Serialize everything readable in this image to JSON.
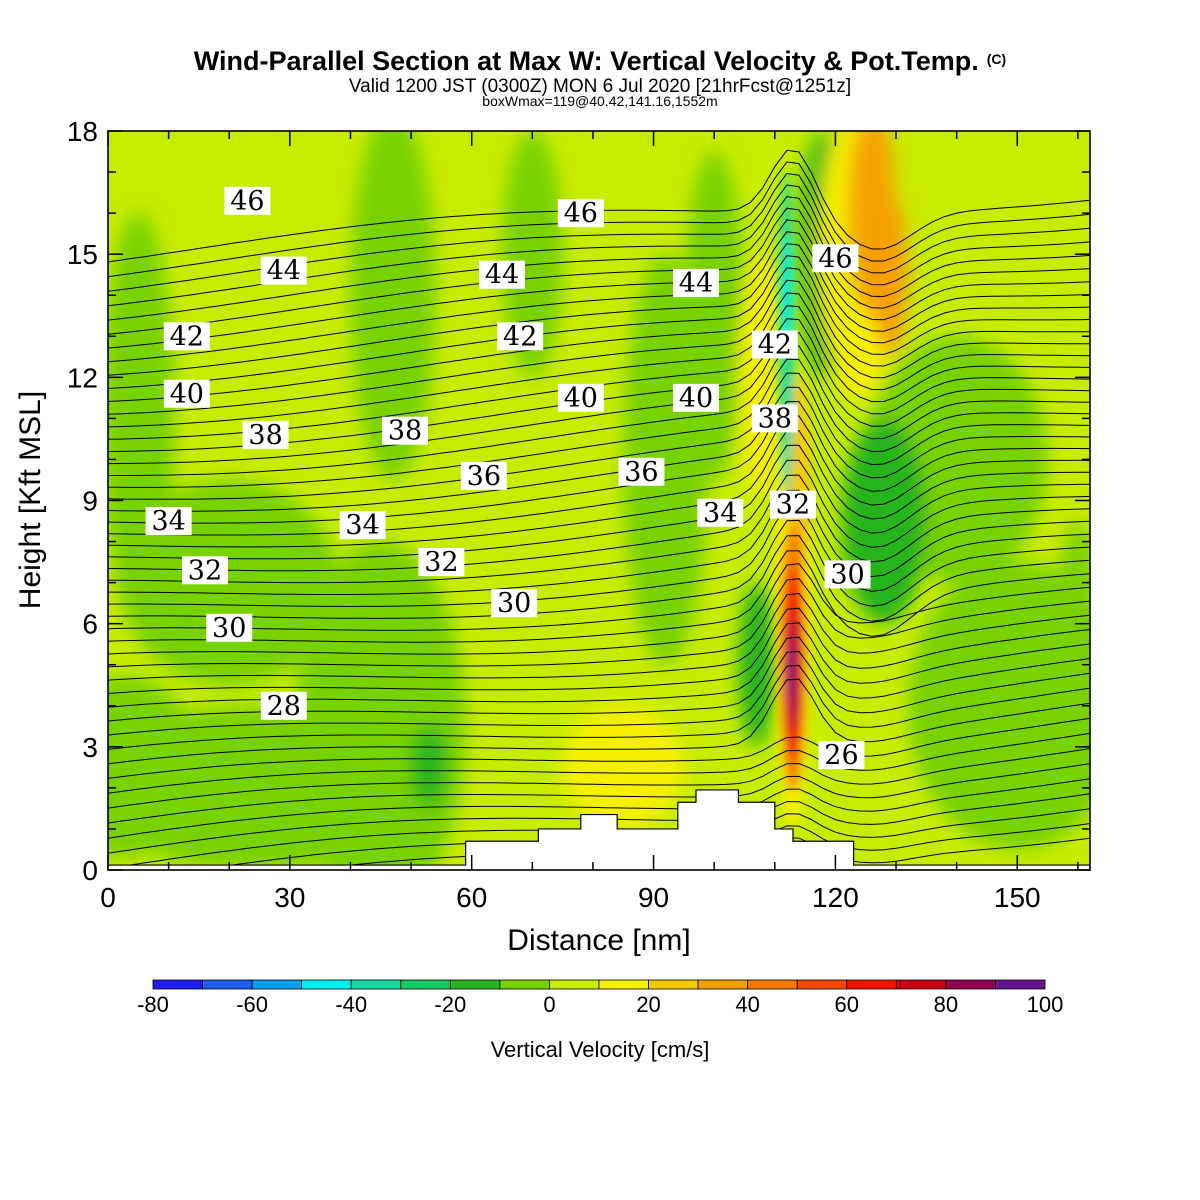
{
  "chart_data": {
    "type": "heatmap",
    "title": "Wind-Parallel Section at Max W: Vertical Velocity & Pot.Temp.",
    "title_mark": "(C)",
    "subtitle": "Valid 1200 JST (0300Z) MON 6 Jul 2020 [21hrFcst@1251z]",
    "subtitle2": "boxWmax=119@40.42,141.16,1552m",
    "xlabel": "Distance [nm]",
    "ylabel": "Height [Kft MSL]",
    "xlim": [
      0,
      162
    ],
    "ylim": [
      0,
      18
    ],
    "xticks": [
      0,
      30,
      60,
      90,
      120,
      150
    ],
    "yticks": [
      0,
      3,
      6,
      9,
      12,
      15,
      18
    ],
    "colorbar": {
      "label": "Vertical Velocity [cm/s]",
      "range": [
        -80,
        100
      ],
      "tick_labels": [
        "-80",
        "-60",
        "-40",
        "-20",
        "0",
        "20",
        "40",
        "60",
        "80",
        "100"
      ],
      "bins": [
        {
          "from": -80,
          "to": -70,
          "color": "#1e1ef0"
        },
        {
          "from": -70,
          "to": -60,
          "color": "#1e5ef0"
        },
        {
          "from": -60,
          "to": -50,
          "color": "#0aa0f0"
        },
        {
          "from": -50,
          "to": -40,
          "color": "#00f0f0"
        },
        {
          "from": -40,
          "to": -30,
          "color": "#14d8a0"
        },
        {
          "from": -30,
          "to": -20,
          "color": "#14c864"
        },
        {
          "from": -20,
          "to": -10,
          "color": "#28b41e"
        },
        {
          "from": -10,
          "to": 0,
          "color": "#78d200"
        },
        {
          "from": 0,
          "to": 10,
          "color": "#c8ec00"
        },
        {
          "from": 10,
          "to": 20,
          "color": "#f5f000"
        },
        {
          "from": 20,
          "to": 30,
          "color": "#f5c800"
        },
        {
          "from": 30,
          "to": 40,
          "color": "#f5a000"
        },
        {
          "from": 40,
          "to": 50,
          "color": "#f57800"
        },
        {
          "from": 50,
          "to": 60,
          "color": "#f54600"
        },
        {
          "from": 60,
          "to": 70,
          "color": "#f01400"
        },
        {
          "from": 70,
          "to": 80,
          "color": "#c80014"
        },
        {
          "from": 80,
          "to": 90,
          "color": "#960050"
        },
        {
          "from": 90,
          "to": 100,
          "color": "#64148c"
        }
      ]
    },
    "w_max": {
      "value": 119,
      "x": 113,
      "y": 5.0
    },
    "terrain": [
      {
        "x0": 59,
        "x1": 71,
        "h": 0.7
      },
      {
        "x0": 71,
        "x1": 78,
        "h": 1.0
      },
      {
        "x0": 78,
        "x1": 84,
        "h": 1.35
      },
      {
        "x0": 84,
        "x1": 94,
        "h": 1.0
      },
      {
        "x0": 94,
        "x1": 97,
        "h": 1.65
      },
      {
        "x0": 97,
        "x1": 104,
        "h": 1.95
      },
      {
        "x0": 104,
        "x1": 110,
        "h": 1.65
      },
      {
        "x0": 110,
        "x1": 113,
        "h": 1.0
      },
      {
        "x0": 113,
        "x1": 123,
        "h": 0.7
      }
    ],
    "theta_labels": [
      {
        "text": "46",
        "x": 23,
        "y": 16.3
      },
      {
        "text": "46",
        "x": 78,
        "y": 16.0
      },
      {
        "text": "46",
        "x": 120,
        "y": 14.9
      },
      {
        "text": "44",
        "x": 29,
        "y": 14.6
      },
      {
        "text": "44",
        "x": 65,
        "y": 14.5
      },
      {
        "text": "44",
        "x": 97,
        "y": 14.3
      },
      {
        "text": "42",
        "x": 13,
        "y": 13.0
      },
      {
        "text": "42",
        "x": 68,
        "y": 13.0
      },
      {
        "text": "42",
        "x": 110,
        "y": 12.8
      },
      {
        "text": "40",
        "x": 13,
        "y": 11.6
      },
      {
        "text": "40",
        "x": 78,
        "y": 11.5
      },
      {
        "text": "40",
        "x": 97,
        "y": 11.5
      },
      {
        "text": "38",
        "x": 26,
        "y": 10.6
      },
      {
        "text": "38",
        "x": 49,
        "y": 10.7
      },
      {
        "text": "38",
        "x": 110,
        "y": 11.0
      },
      {
        "text": "36",
        "x": 62,
        "y": 9.6
      },
      {
        "text": "36",
        "x": 88,
        "y": 9.7
      },
      {
        "text": "34",
        "x": 10,
        "y": 8.5
      },
      {
        "text": "34",
        "x": 42,
        "y": 8.4
      },
      {
        "text": "34",
        "x": 101,
        "y": 8.7
      },
      {
        "text": "32",
        "x": 16,
        "y": 7.3
      },
      {
        "text": "32",
        "x": 55,
        "y": 7.5
      },
      {
        "text": "32",
        "x": 113,
        "y": 8.9
      },
      {
        "text": "30",
        "x": 67,
        "y": 6.5
      },
      {
        "text": "30",
        "x": 20,
        "y": 5.9
      },
      {
        "text": "30",
        "x": 122,
        "y": 7.2
      },
      {
        "text": "28",
        "x": 29,
        "y": 4.0
      },
      {
        "text": "26",
        "x": 121,
        "y": 2.8
      }
    ]
  }
}
